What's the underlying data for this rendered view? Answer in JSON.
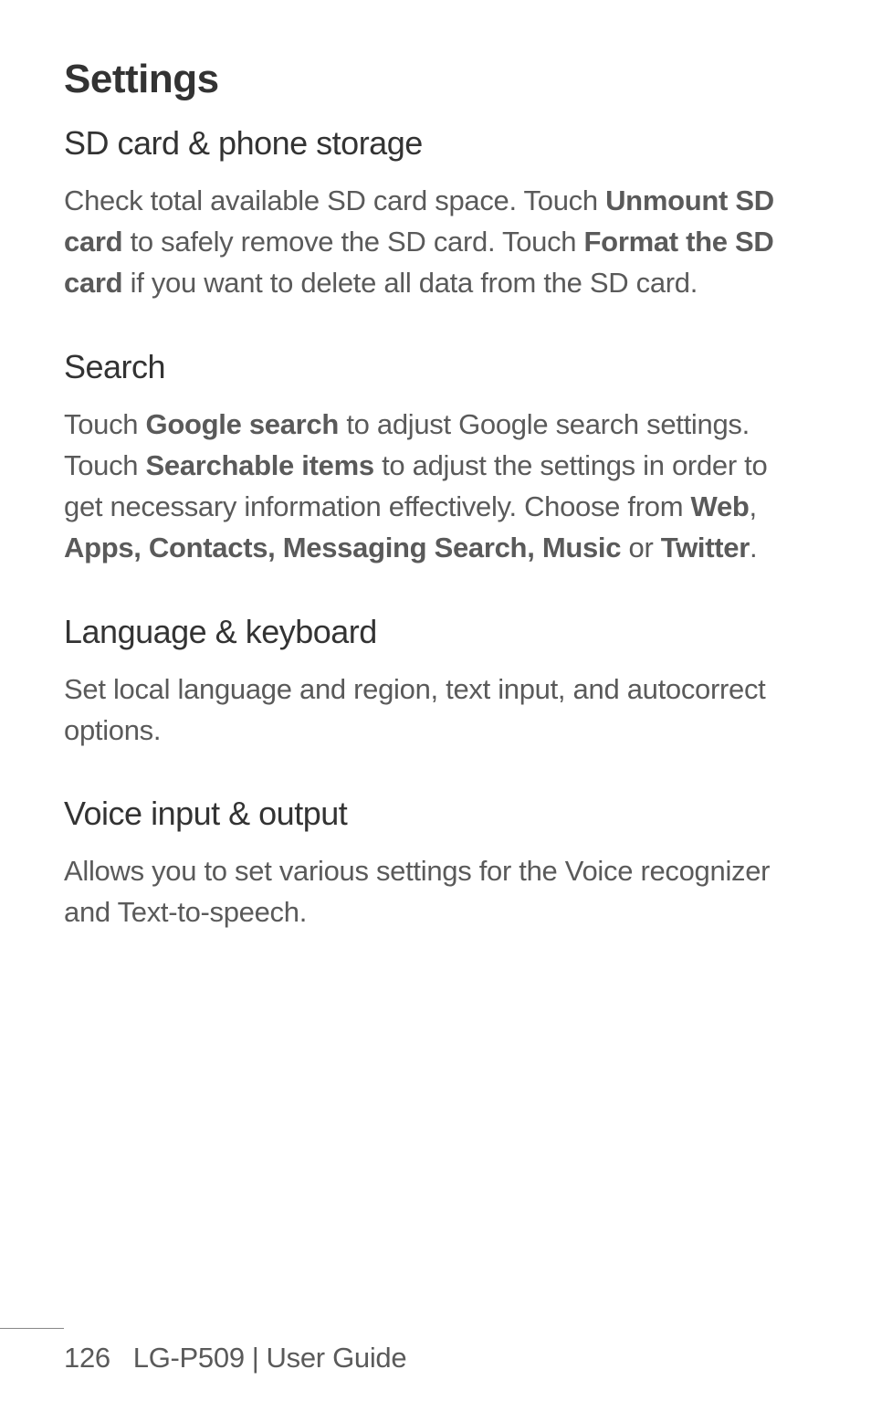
{
  "page": {
    "title": "Settings"
  },
  "sections": {
    "sd": {
      "heading": "SD card & phone storage",
      "p1_a": "Check total available SD card space. Touch ",
      "p1_b": "Unmount SD card",
      "p1_c": " to safely remove the SD card. Touch ",
      "p1_d": "Format the SD card",
      "p1_e": " if you want to delete all data from the SD card."
    },
    "search": {
      "heading": "Search",
      "p1_a": "Touch ",
      "p1_b": "Google search",
      "p1_c": " to adjust Google search settings.",
      "p2_a": "Touch ",
      "p2_b": "Searchable items",
      "p2_c": " to adjust the settings in order to get necessary information effectively. Choose from ",
      "p2_d": "Web",
      "p2_e": ", ",
      "p2_f": "Apps, Contacts, Messaging Search, Music",
      "p2_g": " or ",
      "p2_h": "Twitter",
      "p2_i": "."
    },
    "lang": {
      "heading": "Language & keyboard",
      "p1": "Set local language and region, text input, and autocorrect options."
    },
    "voice": {
      "heading": "Voice input & output",
      "p1": "Allows you to set various settings for the Voice recognizer and Text-to-speech."
    }
  },
  "footer": {
    "page_number": "126",
    "model": "LG-P509",
    "divider": "|",
    "guide": "User Guide"
  }
}
